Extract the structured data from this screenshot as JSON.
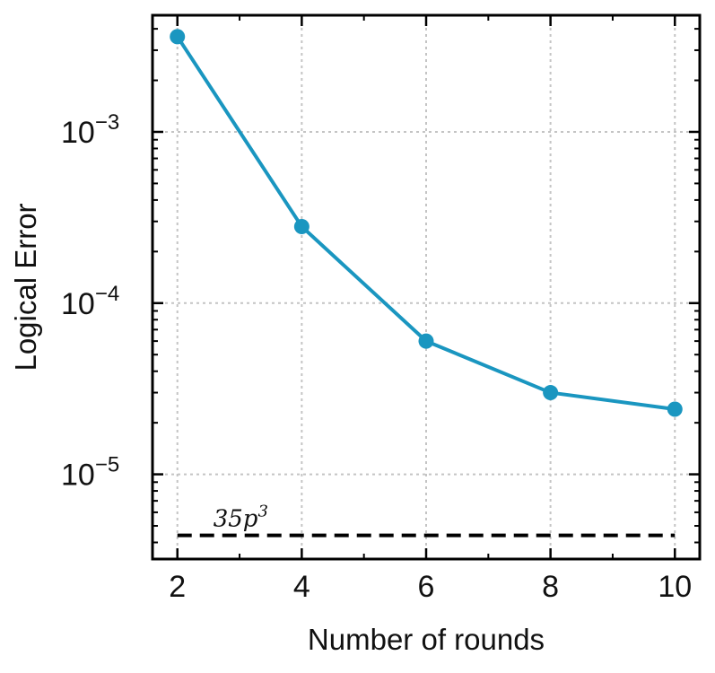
{
  "chart_data": {
    "type": "line",
    "xlabel": "Number of rounds",
    "ylabel": "Logical Error",
    "yscale": "log",
    "grid": true,
    "xlim": [
      1.6,
      10.4
    ],
    "ylim": [
      3.2e-06,
      0.0048
    ],
    "x_ticks": [
      2,
      4,
      6,
      8,
      10
    ],
    "x_tick_labels": [
      "2",
      "4",
      "6",
      "8",
      "10"
    ],
    "y_ticks": [
      1e-05,
      0.0001,
      0.001
    ],
    "y_tick_labels": [
      {
        "base": "10",
        "exp": "−5"
      },
      {
        "base": "10",
        "exp": "−4"
      },
      {
        "base": "10",
        "exp": "−3"
      }
    ],
    "series": [
      {
        "x": [
          2,
          4,
          6,
          8,
          10
        ],
        "values": [
          0.0036,
          0.00028,
          6e-05,
          3e-05,
          2.4e-05
        ],
        "color": "#1a96c0",
        "marker": "circle"
      }
    ],
    "reference_line": {
      "label_base": "35p",
      "label_exp": "3",
      "value": 4.4e-06,
      "x_range": [
        2,
        10
      ],
      "color": "#000000",
      "style": "dashed"
    }
  }
}
